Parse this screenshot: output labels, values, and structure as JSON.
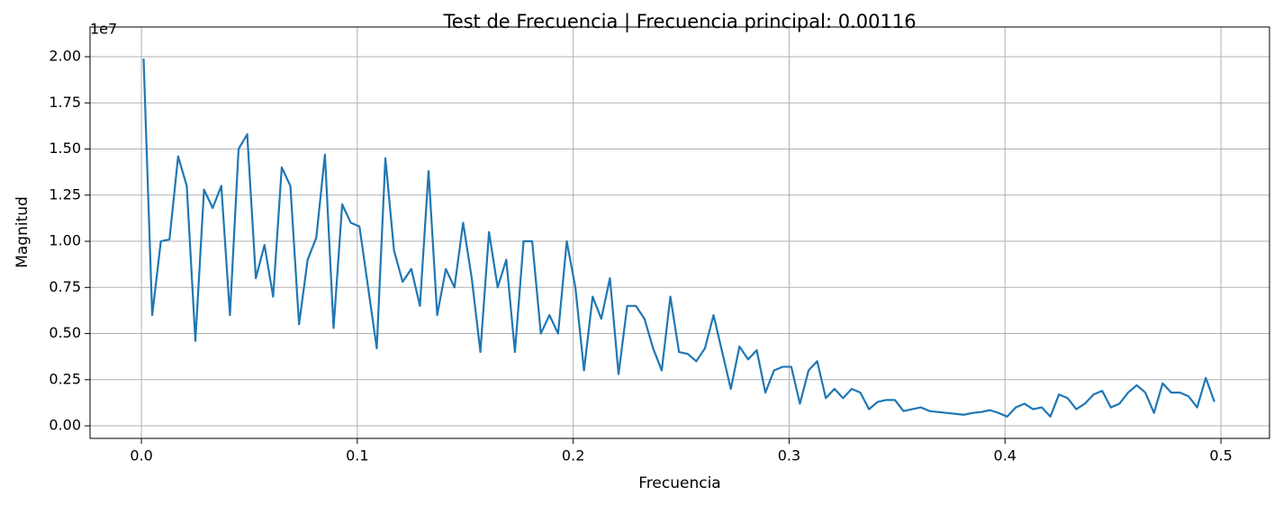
{
  "chart_data": {
    "type": "line",
    "title": "Test de Frecuencia | Frecuencia principal: 0.00116",
    "x_label": "Frecuencia",
    "y_label": "Magnitud",
    "y_offset_label": "1e7",
    "grid": true,
    "xlim": [
      -0.0238,
      0.5225
    ],
    "ylim": [
      -0.068,
      2.161
    ],
    "xticks": [
      {
        "value": 0,
        "label": "0.0"
      },
      0.1,
      0.2,
      0.3,
      0.4,
      0.5
    ],
    "yticks": [
      {
        "value": 0,
        "label": "0.00"
      },
      0.25,
      {
        "value": 0.5,
        "label": "0.50"
      },
      0.75,
      {
        "value": 1,
        "label": "1.00"
      },
      1.25,
      {
        "value": 1.5,
        "label": "1.50"
      },
      1.75,
      {
        "value": 2,
        "label": "2.00"
      }
    ],
    "x": [
      0.001,
      0.005,
      0.009,
      0.013,
      0.017,
      0.021,
      0.025,
      0.029,
      0.033,
      0.037,
      0.041,
      0.045,
      0.049,
      0.053,
      0.057,
      0.061,
      0.065,
      0.069,
      0.073,
      0.077,
      0.081,
      0.085,
      0.089,
      0.093,
      0.097,
      0.101,
      0.105,
      0.109,
      0.113,
      0.117,
      0.121,
      0.125,
      0.129,
      0.133,
      0.137,
      0.141,
      0.145,
      0.149,
      0.153,
      0.157,
      0.161,
      0.165,
      0.169,
      0.173,
      0.177,
      0.181,
      0.185,
      0.189,
      0.193,
      0.197,
      0.201,
      0.205,
      0.209,
      0.213,
      0.217,
      0.221,
      0.225,
      0.229,
      0.233,
      0.237,
      0.241,
      0.245,
      0.249,
      0.253,
      0.257,
      0.261,
      0.265,
      0.269,
      0.273,
      0.277,
      0.281,
      0.285,
      0.289,
      0.293,
      0.297,
      0.301,
      0.305,
      0.309,
      0.313,
      0.317,
      0.321,
      0.325,
      0.329,
      0.333,
      0.337,
      0.341,
      0.345,
      0.349,
      0.353,
      0.357,
      0.361,
      0.365,
      0.369,
      0.373,
      0.377,
      0.381,
      0.385,
      0.389,
      0.393,
      0.397,
      0.401,
      0.405,
      0.409,
      0.413,
      0.417,
      0.421,
      0.425,
      0.429,
      0.433,
      0.437,
      0.441,
      0.445,
      0.449,
      0.453,
      0.457,
      0.461,
      0.465,
      0.469,
      0.473,
      0.477,
      0.481,
      0.485,
      0.489,
      0.493,
      0.497
    ],
    "series": [
      {
        "name": "Magnitud",
        "color": "#1f77b4",
        "values": [
          1.99,
          0.6,
          1.0,
          1.01,
          1.46,
          1.3,
          0.46,
          1.28,
          1.18,
          1.3,
          0.6,
          1.5,
          1.58,
          0.8,
          0.98,
          0.7,
          1.4,
          1.3,
          0.55,
          0.9,
          1.02,
          1.47,
          0.53,
          1.2,
          1.1,
          1.08,
          0.75,
          0.42,
          1.45,
          0.95,
          0.78,
          0.85,
          0.65,
          1.38,
          0.6,
          0.85,
          0.75,
          1.1,
          0.8,
          0.4,
          1.05,
          0.75,
          0.9,
          0.4,
          1.0,
          1.0,
          0.5,
          0.6,
          0.5,
          1.0,
          0.75,
          0.3,
          0.7,
          0.58,
          0.8,
          0.28,
          0.65,
          0.65,
          0.58,
          0.42,
          0.3,
          0.7,
          0.4,
          0.39,
          0.35,
          0.42,
          0.6,
          0.4,
          0.2,
          0.43,
          0.36,
          0.41,
          0.18,
          0.3,
          0.32,
          0.32,
          0.12,
          0.3,
          0.35,
          0.15,
          0.2,
          0.15,
          0.2,
          0.18,
          0.09,
          0.13,
          0.14,
          0.14,
          0.08,
          0.09,
          0.1,
          0.08,
          0.075,
          0.07,
          0.065,
          0.06,
          0.07,
          0.075,
          0.085,
          0.07,
          0.05,
          0.1,
          0.12,
          0.09,
          0.1,
          0.05,
          0.17,
          0.15,
          0.09,
          0.12,
          0.17,
          0.19,
          0.1,
          0.12,
          0.18,
          0.22,
          0.18,
          0.07,
          0.23,
          0.18,
          0.18,
          0.16,
          0.1,
          0.26,
          0.13
        ]
      }
    ]
  }
}
